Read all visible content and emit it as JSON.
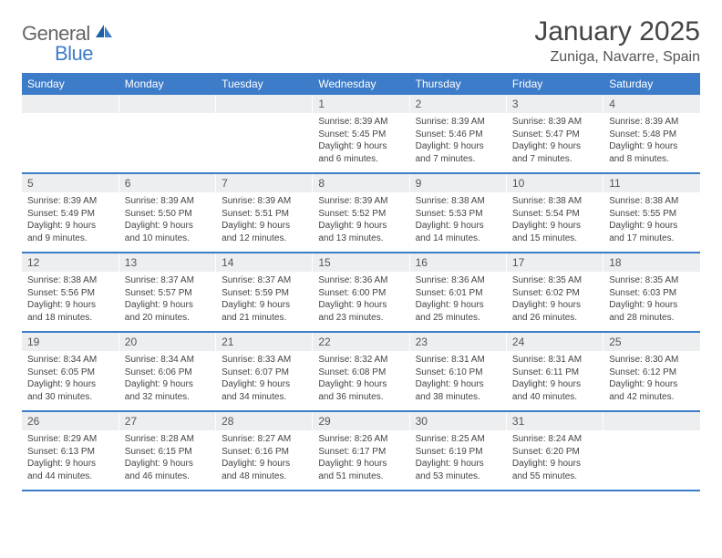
{
  "logo": {
    "word1": "General",
    "word2": "Blue",
    "icon_color": "#1b5fa6"
  },
  "title": {
    "month_year": "January 2025",
    "location": "Zuniga, Navarre, Spain"
  },
  "colors": {
    "header_bg": "#3d7cc9",
    "header_text": "#ffffff",
    "daynum_bg": "#eceef0",
    "sep_line": "#3d7cc9",
    "body_text": "#444444"
  },
  "typography": {
    "month_fontsize": 30,
    "location_fontsize": 16,
    "dow_fontsize": 12,
    "daynum_fontsize": 12,
    "cell_fontsize": 10
  },
  "days_of_week": [
    "Sunday",
    "Monday",
    "Tuesday",
    "Wednesday",
    "Thursday",
    "Friday",
    "Saturday"
  ],
  "weeks": [
    {
      "nums": [
        "",
        "",
        "",
        "1",
        "2",
        "3",
        "4"
      ],
      "cells": [
        "",
        "",
        "",
        "Sunrise: 8:39 AM\nSunset: 5:45 PM\nDaylight: 9 hours and 6 minutes.",
        "Sunrise: 8:39 AM\nSunset: 5:46 PM\nDaylight: 9 hours and 7 minutes.",
        "Sunrise: 8:39 AM\nSunset: 5:47 PM\nDaylight: 9 hours and 7 minutes.",
        "Sunrise: 8:39 AM\nSunset: 5:48 PM\nDaylight: 9 hours and 8 minutes."
      ]
    },
    {
      "nums": [
        "5",
        "6",
        "7",
        "8",
        "9",
        "10",
        "11"
      ],
      "cells": [
        "Sunrise: 8:39 AM\nSunset: 5:49 PM\nDaylight: 9 hours and 9 minutes.",
        "Sunrise: 8:39 AM\nSunset: 5:50 PM\nDaylight: 9 hours and 10 minutes.",
        "Sunrise: 8:39 AM\nSunset: 5:51 PM\nDaylight: 9 hours and 12 minutes.",
        "Sunrise: 8:39 AM\nSunset: 5:52 PM\nDaylight: 9 hours and 13 minutes.",
        "Sunrise: 8:38 AM\nSunset: 5:53 PM\nDaylight: 9 hours and 14 minutes.",
        "Sunrise: 8:38 AM\nSunset: 5:54 PM\nDaylight: 9 hours and 15 minutes.",
        "Sunrise: 8:38 AM\nSunset: 5:55 PM\nDaylight: 9 hours and 17 minutes."
      ]
    },
    {
      "nums": [
        "12",
        "13",
        "14",
        "15",
        "16",
        "17",
        "18"
      ],
      "cells": [
        "Sunrise: 8:38 AM\nSunset: 5:56 PM\nDaylight: 9 hours and 18 minutes.",
        "Sunrise: 8:37 AM\nSunset: 5:57 PM\nDaylight: 9 hours and 20 minutes.",
        "Sunrise: 8:37 AM\nSunset: 5:59 PM\nDaylight: 9 hours and 21 minutes.",
        "Sunrise: 8:36 AM\nSunset: 6:00 PM\nDaylight: 9 hours and 23 minutes.",
        "Sunrise: 8:36 AM\nSunset: 6:01 PM\nDaylight: 9 hours and 25 minutes.",
        "Sunrise: 8:35 AM\nSunset: 6:02 PM\nDaylight: 9 hours and 26 minutes.",
        "Sunrise: 8:35 AM\nSunset: 6:03 PM\nDaylight: 9 hours and 28 minutes."
      ]
    },
    {
      "nums": [
        "19",
        "20",
        "21",
        "22",
        "23",
        "24",
        "25"
      ],
      "cells": [
        "Sunrise: 8:34 AM\nSunset: 6:05 PM\nDaylight: 9 hours and 30 minutes.",
        "Sunrise: 8:34 AM\nSunset: 6:06 PM\nDaylight: 9 hours and 32 minutes.",
        "Sunrise: 8:33 AM\nSunset: 6:07 PM\nDaylight: 9 hours and 34 minutes.",
        "Sunrise: 8:32 AM\nSunset: 6:08 PM\nDaylight: 9 hours and 36 minutes.",
        "Sunrise: 8:31 AM\nSunset: 6:10 PM\nDaylight: 9 hours and 38 minutes.",
        "Sunrise: 8:31 AM\nSunset: 6:11 PM\nDaylight: 9 hours and 40 minutes.",
        "Sunrise: 8:30 AM\nSunset: 6:12 PM\nDaylight: 9 hours and 42 minutes."
      ]
    },
    {
      "nums": [
        "26",
        "27",
        "28",
        "29",
        "30",
        "31",
        ""
      ],
      "cells": [
        "Sunrise: 8:29 AM\nSunset: 6:13 PM\nDaylight: 9 hours and 44 minutes.",
        "Sunrise: 8:28 AM\nSunset: 6:15 PM\nDaylight: 9 hours and 46 minutes.",
        "Sunrise: 8:27 AM\nSunset: 6:16 PM\nDaylight: 9 hours and 48 minutes.",
        "Sunrise: 8:26 AM\nSunset: 6:17 PM\nDaylight: 9 hours and 51 minutes.",
        "Sunrise: 8:25 AM\nSunset: 6:19 PM\nDaylight: 9 hours and 53 minutes.",
        "Sunrise: 8:24 AM\nSunset: 6:20 PM\nDaylight: 9 hours and 55 minutes.",
        ""
      ]
    }
  ]
}
